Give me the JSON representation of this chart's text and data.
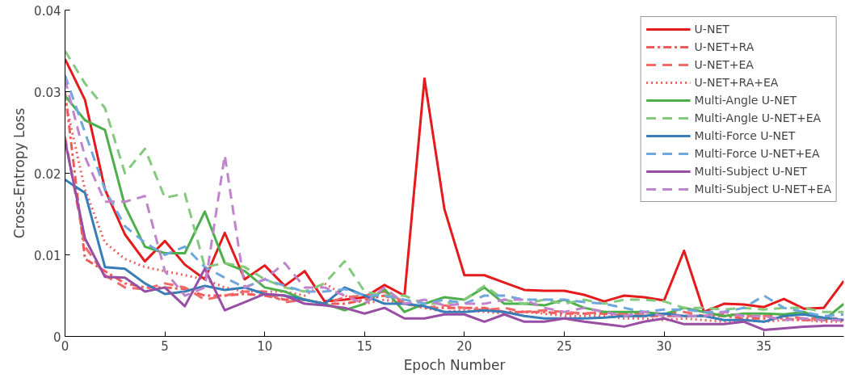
{
  "chart_data": {
    "type": "line",
    "xlabel": "Epoch Number",
    "ylabel": "Cross-Entropy Loss",
    "x": [
      0,
      1,
      2,
      3,
      4,
      5,
      6,
      7,
      8,
      9,
      10,
      11,
      12,
      13,
      14,
      15,
      16,
      17,
      18,
      19,
      20,
      21,
      22,
      23,
      24,
      25,
      26,
      27,
      28,
      29,
      30,
      31,
      32,
      33,
      34,
      35,
      36,
      37,
      38,
      39
    ],
    "xlim": [
      0,
      39
    ],
    "ylim": [
      0,
      0.04
    ],
    "xticks": [
      0,
      5,
      10,
      15,
      20,
      25,
      30,
      35
    ],
    "yticks": [
      0,
      0.01,
      0.02,
      0.03,
      0.04
    ],
    "grid": false,
    "legend": "top right",
    "marker": "none",
    "series": [
      {
        "name": "U-NET",
        "color": "#e41a1c",
        "line_style": "solid",
        "values": [
          0.034,
          0.029,
          0.018,
          0.0125,
          0.0092,
          0.0117,
          0.0088,
          0.007,
          0.0127,
          0.007,
          0.0087,
          0.0062,
          0.008,
          0.0043,
          0.0045,
          0.0048,
          0.0063,
          0.005,
          0.0316,
          0.0156,
          0.0075,
          0.0075,
          0.0066,
          0.0057,
          0.0056,
          0.0056,
          0.0051,
          0.0043,
          0.005,
          0.0048,
          0.0044,
          0.0105,
          0.003,
          0.004,
          0.0039,
          0.0036,
          0.0046,
          0.0034,
          0.0035,
          0.0068
        ]
      },
      {
        "name": "U-NET+RA",
        "color": "#ee5a5a",
        "line_style": "dashdot",
        "values": [
          0.03,
          0.0095,
          0.008,
          0.0065,
          0.006,
          0.006,
          0.0058,
          0.005,
          0.005,
          0.0052,
          0.005,
          0.0045,
          0.0045,
          0.004,
          0.004,
          0.0045,
          0.005,
          0.004,
          0.0035,
          0.0035,
          0.0035,
          0.0035,
          0.003,
          0.003,
          0.003,
          0.0028,
          0.0028,
          0.0028,
          0.0025,
          0.0025,
          0.0025,
          0.0025,
          0.0025,
          0.0025,
          0.0022,
          0.0022,
          0.0022,
          0.002,
          0.002,
          0.002
        ]
      },
      {
        "name": "U-NET+EA",
        "color": "#f06a6a",
        "line_style": "dashed",
        "values": [
          0.0245,
          0.011,
          0.0075,
          0.006,
          0.0058,
          0.0065,
          0.006,
          0.0045,
          0.005,
          0.0055,
          0.0055,
          0.0042,
          0.0045,
          0.004,
          0.0048,
          0.005,
          0.0055,
          0.0042,
          0.0035,
          0.0038,
          0.0035,
          0.0032,
          0.0035,
          0.003,
          0.0032,
          0.003,
          0.0028,
          0.003,
          0.0028,
          0.0028,
          0.0028,
          0.003,
          0.0025,
          0.0028,
          0.0025,
          0.0025,
          0.0025,
          0.0022,
          0.0022,
          0.0022
        ]
      },
      {
        "name": "U-NET+RA+EA",
        "color": "#f06060",
        "line_style": "dotted",
        "values": [
          0.029,
          0.018,
          0.0115,
          0.0095,
          0.0085,
          0.008,
          0.0075,
          0.007,
          0.006,
          0.0055,
          0.0055,
          0.0055,
          0.005,
          0.0065,
          0.005,
          0.004,
          0.0045,
          0.004,
          0.0035,
          0.003,
          0.0032,
          0.003,
          0.0028,
          0.003,
          0.0028,
          0.0025,
          0.0025,
          0.0025,
          0.0022,
          0.0022,
          0.002,
          0.0022,
          0.002,
          0.0018,
          0.002,
          0.0018,
          0.002,
          0.002,
          0.0018,
          0.0018
        ]
      },
      {
        "name": "Multi-Angle U-NET",
        "color": "#4daf4a",
        "line_style": "solid",
        "values": [
          0.0295,
          0.0265,
          0.0253,
          0.016,
          0.011,
          0.0102,
          0.0102,
          0.0153,
          0.009,
          0.008,
          0.006,
          0.0055,
          0.0045,
          0.004,
          0.0032,
          0.004,
          0.0058,
          0.003,
          0.004,
          0.0048,
          0.0045,
          0.006,
          0.004,
          0.004,
          0.0038,
          0.0045,
          0.0035,
          0.003,
          0.003,
          0.003,
          0.0027,
          0.0035,
          0.003,
          0.0025,
          0.0028,
          0.0028,
          0.0027,
          0.003,
          0.002,
          0.004
        ]
      },
      {
        "name": "Multi-Angle U-NET+EA",
        "color": "#85c97e",
        "line_style": "dashed",
        "values": [
          0.035,
          0.031,
          0.028,
          0.02,
          0.023,
          0.017,
          0.0175,
          0.0085,
          0.009,
          0.0085,
          0.007,
          0.006,
          0.0055,
          0.0065,
          0.0092,
          0.0055,
          0.005,
          0.005,
          0.004,
          0.004,
          0.0045,
          0.0062,
          0.0045,
          0.004,
          0.0045,
          0.004,
          0.0045,
          0.004,
          0.0045,
          0.0045,
          0.0043,
          0.0035,
          0.0035,
          0.0033,
          0.0035,
          0.0033,
          0.0035,
          0.0035,
          0.003,
          0.003
        ]
      },
      {
        "name": "Multi-Force U-NET",
        "color": "#377eb8",
        "line_style": "solid",
        "values": [
          0.0192,
          0.0176,
          0.0085,
          0.0083,
          0.0065,
          0.0052,
          0.0055,
          0.0062,
          0.0057,
          0.006,
          0.0052,
          0.005,
          0.0045,
          0.004,
          0.006,
          0.005,
          0.004,
          0.004,
          0.0037,
          0.003,
          0.003,
          0.0032,
          0.003,
          0.0025,
          0.0022,
          0.0022,
          0.0022,
          0.0023,
          0.0025,
          0.0025,
          0.0028,
          0.0025,
          0.0025,
          0.002,
          0.002,
          0.0018,
          0.0025,
          0.0027,
          0.0023,
          0.002
        ]
      },
      {
        "name": "Multi-Force U-NET+EA",
        "color": "#6fa8dc",
        "line_style": "dashed",
        "values": [
          0.032,
          0.025,
          0.018,
          0.0135,
          0.0115,
          0.01,
          0.011,
          0.0085,
          0.0072,
          0.006,
          0.007,
          0.0062,
          0.0055,
          0.0055,
          0.0058,
          0.005,
          0.005,
          0.0045,
          0.004,
          0.0045,
          0.004,
          0.005,
          0.005,
          0.0045,
          0.0045,
          0.0045,
          0.0042,
          0.004,
          0.0035,
          0.003,
          0.0033,
          0.0033,
          0.003,
          0.003,
          0.0035,
          0.005,
          0.0035,
          0.003,
          0.0025,
          0.0027
        ]
      },
      {
        "name": "Multi-Subject U-NET",
        "color": "#984ea3",
        "line_style": "solid",
        "values": [
          0.024,
          0.012,
          0.0073,
          0.0072,
          0.0055,
          0.006,
          0.0037,
          0.0083,
          0.0032,
          0.0042,
          0.0052,
          0.005,
          0.004,
          0.0038,
          0.0035,
          0.0028,
          0.0035,
          0.0022,
          0.0022,
          0.0027,
          0.0027,
          0.0018,
          0.0027,
          0.0018,
          0.0018,
          0.0022,
          0.0018,
          0.0015,
          0.0012,
          0.0018,
          0.0022,
          0.0015,
          0.0015,
          0.0015,
          0.0018,
          0.0008,
          0.001,
          0.0012,
          0.0013,
          0.0013
        ]
      },
      {
        "name": "Multi-Subject U-NET+EA",
        "color": "#c084cc",
        "line_style": "dashed",
        "values": [
          0.0315,
          0.022,
          0.0165,
          0.0165,
          0.0172,
          0.008,
          0.005,
          0.006,
          0.0222,
          0.006,
          0.007,
          0.009,
          0.006,
          0.006,
          0.005,
          0.004,
          0.006,
          0.004,
          0.0045,
          0.0038,
          0.004,
          0.004,
          0.0045,
          0.0045,
          0.0035,
          0.003,
          0.0035,
          0.003,
          0.0025,
          0.003,
          0.0025,
          0.0025,
          0.0025,
          0.003,
          0.0025,
          0.0025,
          0.002,
          0.0022,
          0.002,
          0.002
        ]
      }
    ]
  }
}
